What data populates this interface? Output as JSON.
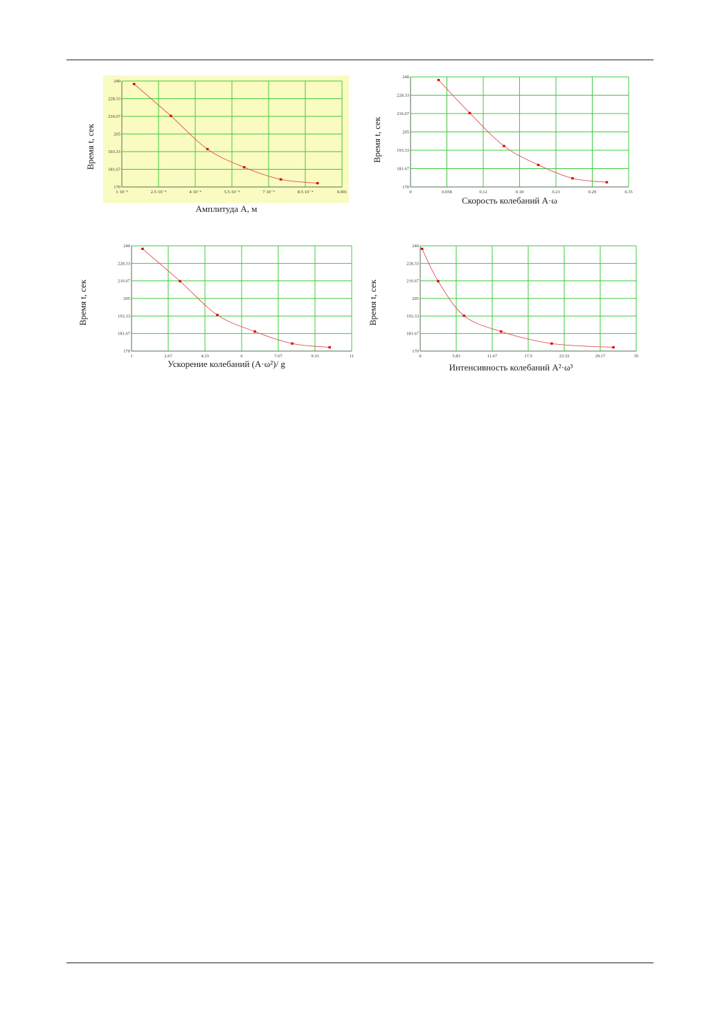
{
  "colors": {
    "grid": "#3ec83e",
    "line": "#e05050",
    "point": "#e00000",
    "panel_bg_yellow": "#fafbc0",
    "panel_bg_white": "#ffffff"
  },
  "chart_data": [
    {
      "type": "line",
      "xlabel": "Амплитуда A, м",
      "ylabel": "Время t, сек",
      "background": "yellow",
      "ylim": [
        170,
        240
      ],
      "xlim": [
        0.0001,
        0.001
      ],
      "xticks": [
        "1·10⁻⁴",
        "2.5·10⁻⁴",
        "4·10⁻⁴",
        "5.5·10⁻⁴",
        "7·10⁻⁴",
        "8.5·10⁻⁴",
        "0.001"
      ],
      "yticks": [
        "170",
        "181.67",
        "193.33",
        "205",
        "216.67",
        "228.33",
        "240"
      ],
      "grid": true,
      "points": {
        "x": [
          0.00015,
          0.0003,
          0.00045,
          0.0006,
          0.00075,
          0.0009
        ],
        "y": [
          238,
          217,
          195,
          183,
          175,
          172.5
        ]
      }
    },
    {
      "type": "line",
      "xlabel": "Скорость колебаний A·ω",
      "ylabel": "Время t, сек",
      "background": "white",
      "ylim": [
        170,
        240
      ],
      "xlim": [
        0,
        0.35
      ],
      "xticks": [
        "0",
        "0.058",
        "0.12",
        "0.18",
        "0.23",
        "0.29",
        "0.35"
      ],
      "yticks": [
        "170",
        "181.67",
        "193.33",
        "205",
        "216.67",
        "228.33",
        "240"
      ],
      "grid": true,
      "points": {
        "x": [
          0.045,
          0.095,
          0.15,
          0.205,
          0.26,
          0.315
        ],
        "y": [
          238,
          217,
          196,
          184,
          175.5,
          173
        ]
      }
    },
    {
      "type": "line",
      "xlabel": "Ускорение колебаний (A·ω²)/ g",
      "ylabel": "Время t, сек",
      "background": "white",
      "ylim": [
        170,
        240
      ],
      "xlim": [
        1,
        11
      ],
      "xticks": [
        "1",
        "2.67",
        "4.33",
        "6",
        "7.67",
        "9.33",
        "11"
      ],
      "yticks": [
        "170",
        "181.67",
        "193.33",
        "205",
        "216.67",
        "228.33",
        "240"
      ],
      "grid": true,
      "points": {
        "x": [
          1.5,
          3.2,
          4.9,
          6.6,
          8.3,
          10.0
        ],
        "y": [
          238,
          216.5,
          194,
          183,
          175,
          172.5
        ]
      }
    },
    {
      "type": "line",
      "xlabel": "Интенсивность колебаний A²·ω³",
      "ylabel": "Время t, сек",
      "background": "white",
      "ylim": [
        170,
        240
      ],
      "xlim": [
        0,
        35
      ],
      "xticks": [
        "0",
        "5.83",
        "11.67",
        "17.5",
        "23.33",
        "29.17",
        "35"
      ],
      "yticks": [
        "170",
        "181.67",
        "193.33",
        "205",
        "216.67",
        "228.33",
        "240"
      ],
      "grid": true,
      "points": {
        "x": [
          0.3,
          2.9,
          7.1,
          13.1,
          21.3,
          31.3
        ],
        "y": [
          238,
          216.5,
          193.5,
          183,
          175,
          172.5
        ]
      }
    }
  ]
}
